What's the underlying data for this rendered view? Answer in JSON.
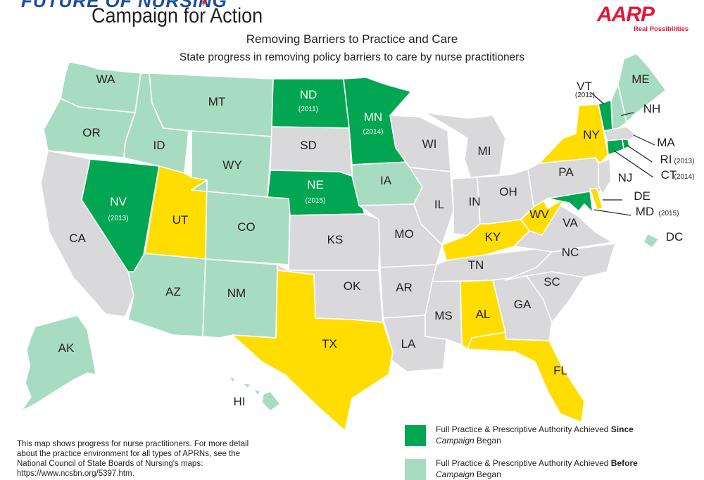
{
  "header": {
    "brand_top": "FUTURE OF NURSING",
    "brand_main": "Campaign for Action",
    "aarp_logo": "AARP",
    "aarp_tagline": "Real Possibilities",
    "title": "Removing Barriers to Practice and Care",
    "subtitle": "State progress in removing policy barriers to care by nurse practitioners"
  },
  "colors": {
    "since": "#00a651",
    "before": "#a8dcc1",
    "progress": "#ffdd00",
    "none": "#d9d9db",
    "border": "#ffffff"
  },
  "states": {
    "WA": {
      "label": "WA",
      "status": "before"
    },
    "OR": {
      "label": "OR",
      "status": "before"
    },
    "CA": {
      "label": "CA",
      "status": "none"
    },
    "NV": {
      "label": "NV",
      "status": "since",
      "year": "(2013)"
    },
    "ID": {
      "label": "ID",
      "status": "before"
    },
    "MT": {
      "label": "MT",
      "status": "before"
    },
    "WY": {
      "label": "WY",
      "status": "before"
    },
    "UT": {
      "label": "UT",
      "status": "progress"
    },
    "AZ": {
      "label": "AZ",
      "status": "before"
    },
    "CO": {
      "label": "CO",
      "status": "before"
    },
    "NM": {
      "label": "NM",
      "status": "before"
    },
    "ND": {
      "label": "ND",
      "status": "since",
      "year": "(2011)"
    },
    "SD": {
      "label": "SD",
      "status": "none"
    },
    "NE": {
      "label": "NE",
      "status": "since",
      "year": "(2015)"
    },
    "KS": {
      "label": "KS",
      "status": "none"
    },
    "OK": {
      "label": "OK",
      "status": "none"
    },
    "TX": {
      "label": "TX",
      "status": "progress"
    },
    "MN": {
      "label": "MN",
      "status": "since",
      "year": "(2014)"
    },
    "IA": {
      "label": "IA",
      "status": "before"
    },
    "MO": {
      "label": "MO",
      "status": "none"
    },
    "AR": {
      "label": "AR",
      "status": "none"
    },
    "LA": {
      "label": "LA",
      "status": "none"
    },
    "WI": {
      "label": "WI",
      "status": "none"
    },
    "IL": {
      "label": "IL",
      "status": "none"
    },
    "MI": {
      "label": "MI",
      "status": "none"
    },
    "IN": {
      "label": "IN",
      "status": "none"
    },
    "OH": {
      "label": "OH",
      "status": "none"
    },
    "KY": {
      "label": "KY",
      "status": "progress"
    },
    "TN": {
      "label": "TN",
      "status": "none"
    },
    "MS": {
      "label": "MS",
      "status": "none"
    },
    "AL": {
      "label": "AL",
      "status": "progress"
    },
    "GA": {
      "label": "GA",
      "status": "none"
    },
    "FL": {
      "label": "FL",
      "status": "progress"
    },
    "SC": {
      "label": "SC",
      "status": "none"
    },
    "NC": {
      "label": "NC",
      "status": "none"
    },
    "VA": {
      "label": "VA",
      "status": "none"
    },
    "WV": {
      "label": "WV",
      "status": "progress"
    },
    "PA": {
      "label": "PA",
      "status": "none"
    },
    "NY": {
      "label": "NY",
      "status": "progress"
    },
    "NJ": {
      "label": "NJ",
      "status": "none"
    },
    "DE": {
      "label": "DE",
      "status": "progress"
    },
    "MD": {
      "label": "MD",
      "status": "since",
      "year": "(2015)"
    },
    "DC": {
      "label": "DC",
      "status": "before"
    },
    "VT": {
      "label": "VT",
      "status": "since",
      "year": "(2011)"
    },
    "NH": {
      "label": "NH",
      "status": "before"
    },
    "ME": {
      "label": "ME",
      "status": "before"
    },
    "MA": {
      "label": "MA",
      "status": "none"
    },
    "RI": {
      "label": "RI",
      "status": "since",
      "year": "(2013)"
    },
    "CT": {
      "label": "CT",
      "status": "since",
      "year": "(2014)"
    },
    "AK": {
      "label": "AK",
      "status": "before"
    },
    "HI": {
      "label": "HI",
      "status": "before"
    }
  },
  "note": "This map shows progress for nurse practitioners. For more detail about the practice environment for all types of APRNs, see the National Council of State Boards of Nursing's maps: https://www.ncsbn.org/5397.htm.",
  "legend": [
    {
      "status": "since",
      "pre": "Full Practice & Prescriptive Authority Achieved ",
      "emph": "Since",
      "italic": "Campaign",
      "post": " Began"
    },
    {
      "status": "before",
      "pre": "Full Practice & Prescriptive Authority Achieved ",
      "emph": "Before",
      "italic": "Campaign",
      "post": " Began"
    }
  ]
}
